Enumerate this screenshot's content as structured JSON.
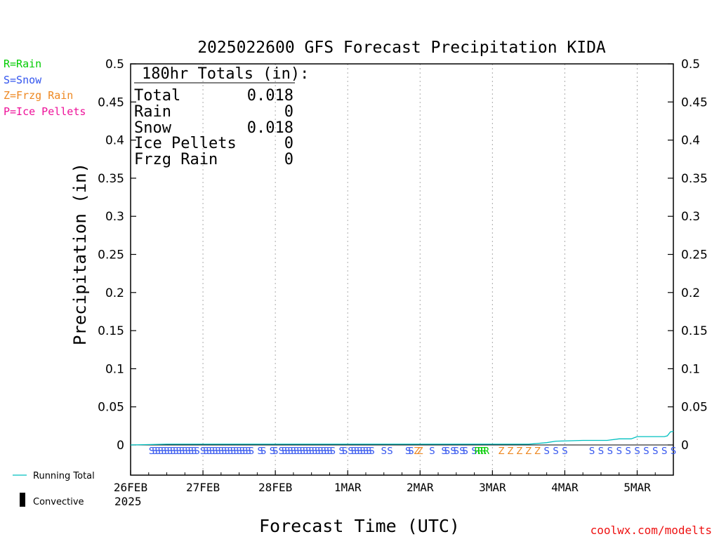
{
  "chart_data": {
    "type": "line",
    "title": "2025022600 GFS Forecast Precipitation KIDA",
    "xlabel": "Forecast Time (UTC)",
    "ylabel": "Precipitation (in)",
    "ylim": [
      0,
      0.5
    ],
    "y_ticks": [
      "0",
      "0.05",
      "0.1",
      "0.15",
      "0.2",
      "0.25",
      "0.3",
      "0.35",
      "0.4",
      "0.45",
      "0.5"
    ],
    "x_hours_range": [
      0,
      180
    ],
    "x_ticks": [
      {
        "label": "26FEB",
        "hour": 0
      },
      {
        "label": "27FEB",
        "hour": 24
      },
      {
        "label": "28FEB",
        "hour": 48
      },
      {
        "label": "1MAR",
        "hour": 72
      },
      {
        "label": "2MAR",
        "hour": 96
      },
      {
        "label": "3MAR",
        "hour": 120
      },
      {
        "label": "4MAR",
        "hour": 144
      },
      {
        "label": "5MAR",
        "hour": 168
      }
    ],
    "x_year_label": "2025",
    "grid": "vertical dotted",
    "series": [
      {
        "name": "Running Total",
        "color": "#00c0c0",
        "points": [
          [
            0,
            0
          ],
          [
            12,
            0.001
          ],
          [
            24,
            0.001
          ],
          [
            48,
            0.001
          ],
          [
            72,
            0.001
          ],
          [
            96,
            0.001
          ],
          [
            120,
            0.001
          ],
          [
            132,
            0.001
          ],
          [
            138,
            0.003
          ],
          [
            141,
            0.005
          ],
          [
            150,
            0.006
          ],
          [
            158,
            0.006
          ],
          [
            162,
            0.008
          ],
          [
            166,
            0.008
          ],
          [
            168,
            0.011
          ],
          [
            177,
            0.011
          ],
          [
            178,
            0.012
          ],
          [
            179,
            0.017
          ],
          [
            180,
            0.018
          ]
        ]
      },
      {
        "name": "Convective",
        "color": "#000000",
        "points": []
      }
    ],
    "precip_type_markers": [
      {
        "hour": 7,
        "type": "S"
      },
      {
        "hour": 8,
        "type": "S"
      },
      {
        "hour": 9,
        "type": "S"
      },
      {
        "hour": 10,
        "type": "S"
      },
      {
        "hour": 11,
        "type": "S"
      },
      {
        "hour": 12,
        "type": "S"
      },
      {
        "hour": 13,
        "type": "S"
      },
      {
        "hour": 14,
        "type": "S"
      },
      {
        "hour": 15,
        "type": "S"
      },
      {
        "hour": 16,
        "type": "S"
      },
      {
        "hour": 17,
        "type": "S"
      },
      {
        "hour": 18,
        "type": "S"
      },
      {
        "hour": 19,
        "type": "S"
      },
      {
        "hour": 20,
        "type": "S"
      },
      {
        "hour": 21,
        "type": "S"
      },
      {
        "hour": 22,
        "type": "S"
      },
      {
        "hour": 24,
        "type": "S"
      },
      {
        "hour": 25,
        "type": "S"
      },
      {
        "hour": 26,
        "type": "S"
      },
      {
        "hour": 27,
        "type": "S"
      },
      {
        "hour": 28,
        "type": "S"
      },
      {
        "hour": 29,
        "type": "S"
      },
      {
        "hour": 30,
        "type": "S"
      },
      {
        "hour": 31,
        "type": "S"
      },
      {
        "hour": 32,
        "type": "S"
      },
      {
        "hour": 33,
        "type": "S"
      },
      {
        "hour": 34,
        "type": "S"
      },
      {
        "hour": 35,
        "type": "S"
      },
      {
        "hour": 36,
        "type": "S"
      },
      {
        "hour": 37,
        "type": "S"
      },
      {
        "hour": 38,
        "type": "S"
      },
      {
        "hour": 39,
        "type": "S"
      },
      {
        "hour": 40,
        "type": "S"
      },
      {
        "hour": 43,
        "type": "S"
      },
      {
        "hour": 44,
        "type": "S"
      },
      {
        "hour": 47,
        "type": "S"
      },
      {
        "hour": 48,
        "type": "S"
      },
      {
        "hour": 50,
        "type": "S"
      },
      {
        "hour": 51,
        "type": "S"
      },
      {
        "hour": 52,
        "type": "S"
      },
      {
        "hour": 53,
        "type": "S"
      },
      {
        "hour": 54,
        "type": "S"
      },
      {
        "hour": 55,
        "type": "S"
      },
      {
        "hour": 56,
        "type": "S"
      },
      {
        "hour": 57,
        "type": "S"
      },
      {
        "hour": 58,
        "type": "S"
      },
      {
        "hour": 59,
        "type": "S"
      },
      {
        "hour": 60,
        "type": "S"
      },
      {
        "hour": 61,
        "type": "S"
      },
      {
        "hour": 62,
        "type": "S"
      },
      {
        "hour": 63,
        "type": "S"
      },
      {
        "hour": 64,
        "type": "S"
      },
      {
        "hour": 65,
        "type": "S"
      },
      {
        "hour": 66,
        "type": "S"
      },
      {
        "hour": 67,
        "type": "S"
      },
      {
        "hour": 70,
        "type": "S"
      },
      {
        "hour": 71,
        "type": "S"
      },
      {
        "hour": 73,
        "type": "S"
      },
      {
        "hour": 74,
        "type": "S"
      },
      {
        "hour": 75,
        "type": "S"
      },
      {
        "hour": 76,
        "type": "S"
      },
      {
        "hour": 77,
        "type": "S"
      },
      {
        "hour": 78,
        "type": "S"
      },
      {
        "hour": 79,
        "type": "S"
      },
      {
        "hour": 80,
        "type": "S"
      },
      {
        "hour": 84,
        "type": "S"
      },
      {
        "hour": 86,
        "type": "S"
      },
      {
        "hour": 92,
        "type": "S"
      },
      {
        "hour": 93,
        "type": "S"
      },
      {
        "hour": 95,
        "type": "Z"
      },
      {
        "hour": 96,
        "type": "Z"
      },
      {
        "hour": 100,
        "type": "S"
      },
      {
        "hour": 104,
        "type": "S"
      },
      {
        "hour": 105,
        "type": "S"
      },
      {
        "hour": 107,
        "type": "S"
      },
      {
        "hour": 108,
        "type": "S"
      },
      {
        "hour": 110,
        "type": "S"
      },
      {
        "hour": 111,
        "type": "S"
      },
      {
        "hour": 114,
        "type": "S"
      },
      {
        "hour": 115,
        "type": "R"
      },
      {
        "hour": 116,
        "type": "R"
      },
      {
        "hour": 117,
        "type": "R"
      },
      {
        "hour": 118,
        "type": "R"
      },
      {
        "hour": 123,
        "type": "Z"
      },
      {
        "hour": 126,
        "type": "Z"
      },
      {
        "hour": 129,
        "type": "Z"
      },
      {
        "hour": 132,
        "type": "Z"
      },
      {
        "hour": 135,
        "type": "Z"
      },
      {
        "hour": 138,
        "type": "S"
      },
      {
        "hour": 141,
        "type": "S"
      },
      {
        "hour": 144,
        "type": "S"
      },
      {
        "hour": 153,
        "type": "S"
      },
      {
        "hour": 156,
        "type": "S"
      },
      {
        "hour": 159,
        "type": "S"
      },
      {
        "hour": 162,
        "type": "S"
      },
      {
        "hour": 165,
        "type": "S"
      },
      {
        "hour": 168,
        "type": "S"
      },
      {
        "hour": 171,
        "type": "S"
      },
      {
        "hour": 174,
        "type": "S"
      },
      {
        "hour": 177,
        "type": "S"
      },
      {
        "hour": 180,
        "type": "S"
      }
    ]
  },
  "type_colors": {
    "R": "#00cc00",
    "S": "#3355ee",
    "Z": "#ee8822",
    "P": "#ee1199"
  },
  "type_legend": [
    {
      "code": "R",
      "text": "R=Rain"
    },
    {
      "code": "S",
      "text": "S=Snow"
    },
    {
      "code": "Z",
      "text": "Z=Frzg Rain"
    },
    {
      "code": "P",
      "text": "P=Ice Pellets"
    }
  ],
  "line_legend": {
    "running_total": "Running Total",
    "convective": "Convective"
  },
  "totals": {
    "header": "180hr Totals (in):",
    "rows": [
      {
        "label": "Total",
        "value": "0.018"
      },
      {
        "label": "Rain",
        "value": "0"
      },
      {
        "label": "Snow",
        "value": "0.018"
      },
      {
        "label": "Ice Pellets",
        "value": "0"
      },
      {
        "label": "Frzg Rain",
        "value": "0"
      }
    ]
  },
  "credit": "coolwx.com/modelts"
}
